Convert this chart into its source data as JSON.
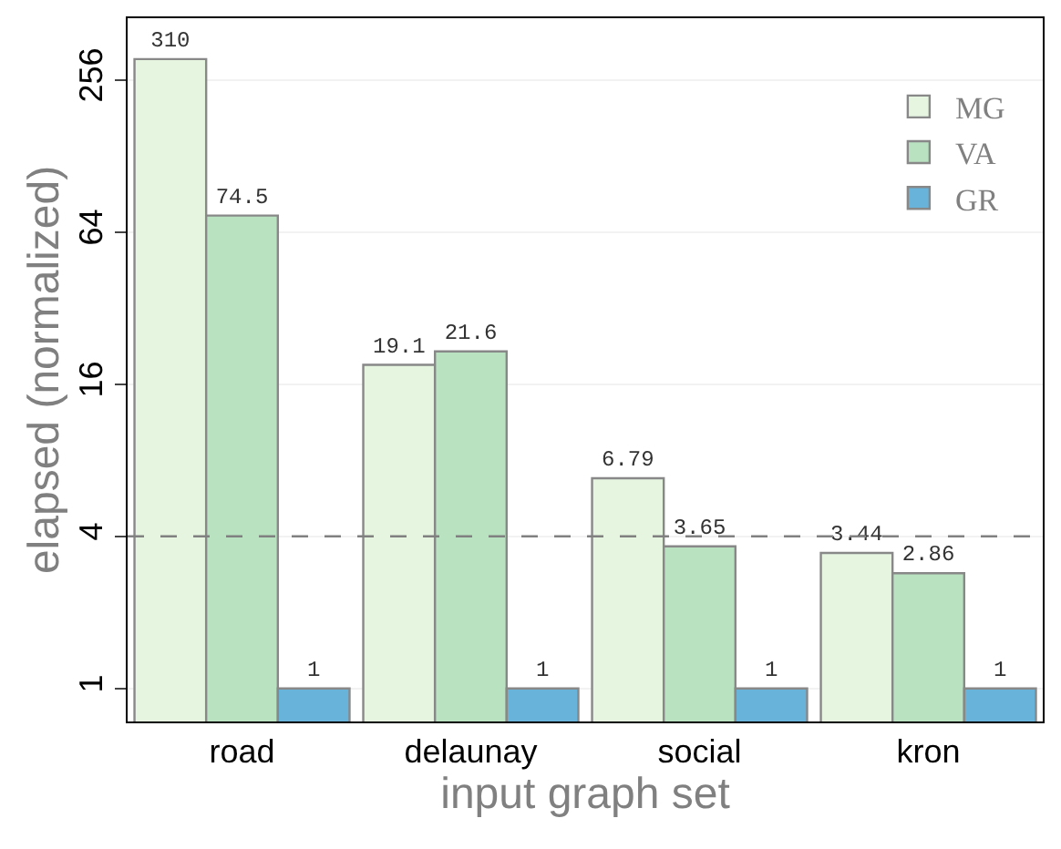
{
  "chart_data": {
    "type": "bar",
    "xlabel": "input graph set",
    "ylabel": "elapsed (normalized)",
    "categories": [
      "road",
      "delaunay",
      "social",
      "kron"
    ],
    "series": [
      {
        "name": "MG",
        "color": "#e5f5e0",
        "values": [
          310,
          19.1,
          6.79,
          3.44
        ]
      },
      {
        "name": "VA",
        "color": "#b8e2c0",
        "values": [
          74.5,
          21.6,
          3.65,
          2.86
        ]
      },
      {
        "name": "GR",
        "color": "#67b3d9",
        "values": [
          1,
          1,
          1,
          1
        ]
      }
    ],
    "log": "y",
    "ylim": [
      0.74,
      450
    ],
    "yticks": [
      1,
      4,
      16,
      64,
      256
    ],
    "grid": "y",
    "legend": "top right",
    "data_labels": true,
    "ref_lines": [
      {
        "axis": "y",
        "value": 4,
        "color": "#808080",
        "line_style": "dashed"
      }
    ]
  }
}
